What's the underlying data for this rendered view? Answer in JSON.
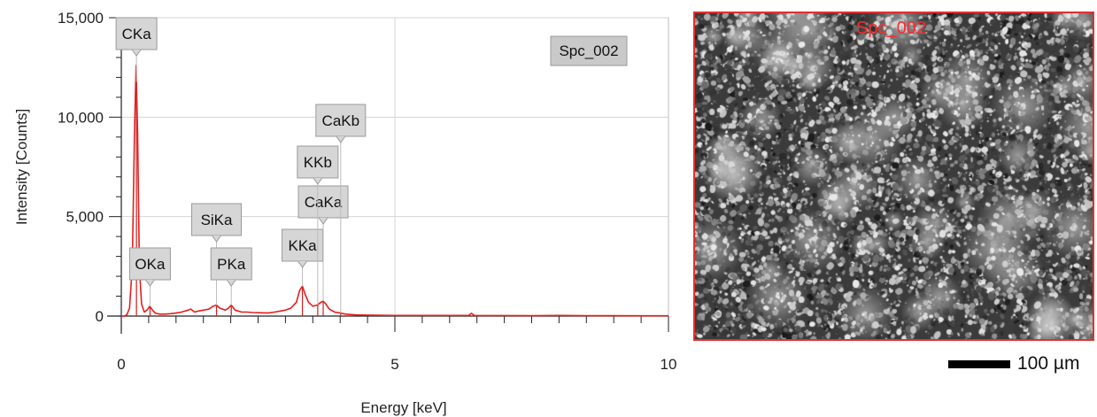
{
  "chart_data": {
    "type": "line",
    "xlabel": "Energy [keV]",
    "ylabel": "Intensity [Counts]",
    "xlim": [
      0,
      10
    ],
    "ylim": [
      0,
      15000
    ],
    "x_ticks": [
      0,
      5,
      10
    ],
    "x_tick_labels": [
      "0",
      "5",
      "10"
    ],
    "y_ticks": [
      0,
      5000,
      10000,
      15000
    ],
    "y_tick_labels": [
      "0",
      "5,000",
      "10,000",
      "15,000"
    ],
    "grid": true,
    "legend": "top-right",
    "series": [
      {
        "name": "Spc_002",
        "color": "#e41e1e",
        "x": [
          0.0,
          0.05,
          0.1,
          0.15,
          0.2,
          0.24,
          0.27,
          0.3,
          0.33,
          0.37,
          0.42,
          0.47,
          0.52,
          0.57,
          0.62,
          0.7,
          0.8,
          0.9,
          1.0,
          1.1,
          1.2,
          1.27,
          1.34,
          1.4,
          1.5,
          1.6,
          1.68,
          1.74,
          1.8,
          1.9,
          1.96,
          2.01,
          2.08,
          2.2,
          2.3,
          2.4,
          2.5,
          2.6,
          2.7,
          2.8,
          2.9,
          3.0,
          3.1,
          3.2,
          3.26,
          3.31,
          3.36,
          3.42,
          3.5,
          3.58,
          3.65,
          3.69,
          3.74,
          3.8,
          3.9,
          4.01,
          4.1,
          4.3,
          4.5,
          5.0,
          5.5,
          6.0,
          6.35,
          6.4,
          6.45,
          6.5,
          7.0,
          7.5,
          8.0,
          8.5,
          9.0,
          9.5,
          10.0
        ],
        "y": [
          0,
          0,
          60,
          400,
          2500,
          9000,
          12600,
          9000,
          2500,
          600,
          200,
          300,
          500,
          300,
          150,
          100,
          100,
          120,
          150,
          200,
          280,
          350,
          200,
          250,
          300,
          350,
          500,
          550,
          400,
          300,
          400,
          550,
          300,
          200,
          200,
          180,
          170,
          160,
          160,
          200,
          250,
          300,
          400,
          700,
          1300,
          1500,
          1100,
          700,
          500,
          550,
          700,
          750,
          600,
          350,
          200,
          150,
          100,
          60,
          50,
          30,
          30,
          30,
          30,
          140,
          30,
          25,
          25,
          20,
          30,
          20,
          20,
          15,
          15
        ]
      }
    ],
    "peak_labels": [
      {
        "text": "CKa",
        "x": 0.277
      },
      {
        "text": "OKa",
        "x": 0.525
      },
      {
        "text": "SiKa",
        "x": 1.74
      },
      {
        "text": "PKa",
        "x": 2.01
      },
      {
        "text": "KKa",
        "x": 3.31
      },
      {
        "text": "CaKa",
        "x": 3.69
      },
      {
        "text": "KKb",
        "x": 3.59
      },
      {
        "text": "CaKb",
        "x": 4.01
      }
    ]
  },
  "image_panel": {
    "label": "Spc_002",
    "label_color": "#ff2a2a",
    "border_color": "#e23030"
  },
  "scale_bar": {
    "label": "100 µm"
  }
}
